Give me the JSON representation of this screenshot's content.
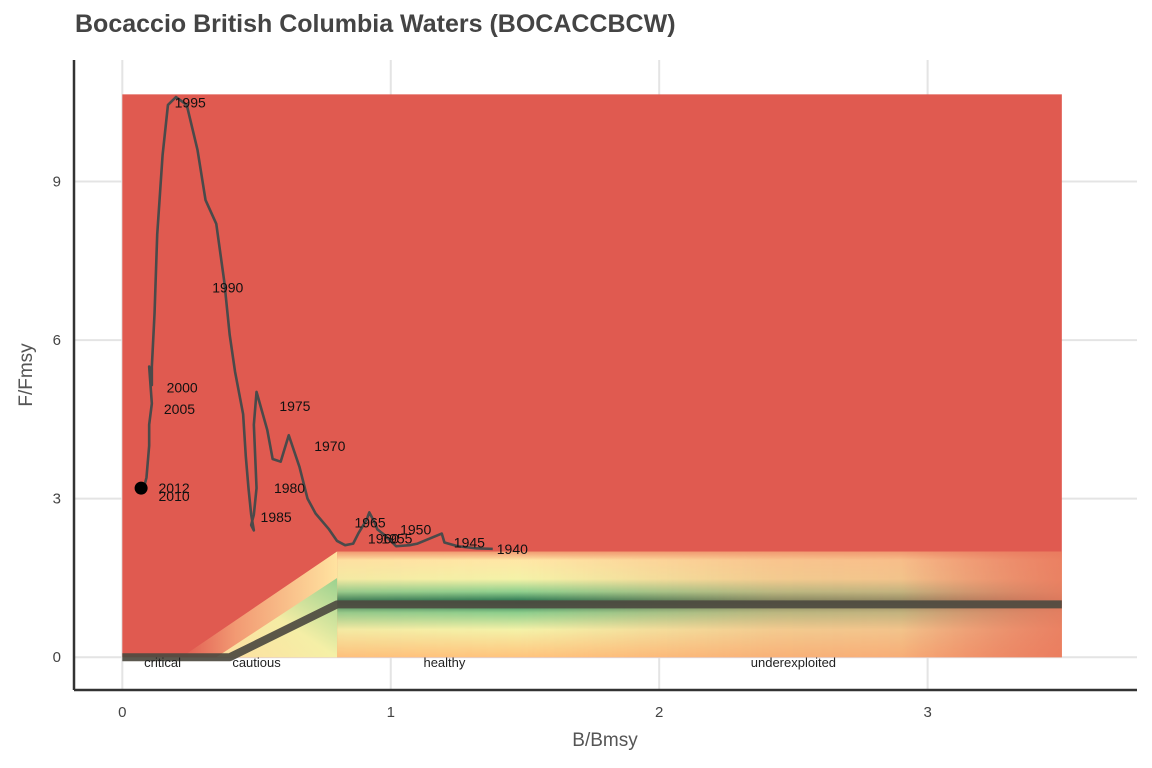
{
  "chart_data": {
    "type": "line",
    "title": "Bocaccio British Columbia Waters (BOCACCBCW)",
    "xlabel": "B/Bmsy",
    "ylabel": "F/Fmsy",
    "xlim": [
      -0.18,
      3.78
    ],
    "ylim": [
      -0.62,
      11.3
    ],
    "xticks": [
      0,
      1,
      2,
      3
    ],
    "yticks": [
      0,
      3,
      6,
      9
    ],
    "grid": true,
    "background_extent": {
      "x": [
        0,
        3.5
      ],
      "y": [
        0,
        10.65
      ]
    },
    "colors": {
      "overfished_zone": "#e05a50",
      "healthy_core": "#1f6b4a",
      "reference_line": "#4d4a40",
      "trajectory": "#4a4a4a",
      "last_point": "#000000"
    },
    "reference_line": {
      "x": [
        0,
        0.4,
        0.8,
        3.5
      ],
      "y": [
        0,
        0,
        1,
        1
      ]
    },
    "series": [
      {
        "x": [
          1.38,
          1.32,
          1.25,
          1.2,
          1.19,
          1.1,
          1.07,
          1.02,
          0.98,
          0.95,
          0.94,
          0.92,
          0.91,
          0.88,
          0.86,
          0.83,
          0.8,
          0.77,
          0.72,
          0.69,
          0.66,
          0.62,
          0.59,
          0.56,
          0.54,
          0.5,
          0.49,
          0.5,
          0.49,
          0.48,
          0.49,
          0.48,
          0.47,
          0.46,
          0.45,
          0.42,
          0.4,
          0.38,
          0.35,
          0.31,
          0.28,
          0.24,
          0.2,
          0.17,
          0.15,
          0.13,
          0.12,
          0.11,
          0.11,
          0.1,
          0.11,
          0.1,
          0.1,
          0.09,
          0.08,
          0.07
        ],
        "y": [
          2.05,
          2.06,
          2.1,
          2.17,
          2.34,
          2.15,
          2.12,
          2.1,
          2.3,
          2.42,
          2.55,
          2.74,
          2.6,
          2.35,
          2.15,
          2.12,
          2.2,
          2.42,
          2.72,
          3.0,
          3.6,
          4.2,
          3.7,
          3.75,
          4.3,
          5.02,
          4.4,
          3.2,
          2.7,
          2.5,
          2.4,
          2.7,
          3.2,
          3.8,
          4.6,
          5.4,
          6.1,
          7.1,
          8.2,
          8.65,
          9.6,
          10.45,
          10.6,
          10.45,
          9.5,
          8.0,
          6.5,
          5.5,
          5.15,
          5.5,
          4.8,
          4.4,
          4.0,
          3.4,
          3.2,
          3.2
        ]
      }
    ],
    "year_labels": [
      {
        "text": "1940",
        "x": 1.38,
        "y": 2.05
      },
      {
        "text": "1945",
        "x": 1.22,
        "y": 2.17
      },
      {
        "text": "1950",
        "x": 1.02,
        "y": 2.42
      },
      {
        "text": "1955",
        "x": 0.95,
        "y": 2.25
      },
      {
        "text": "1960",
        "x": 0.9,
        "y": 2.25
      },
      {
        "text": "1965",
        "x": 0.85,
        "y": 2.55
      },
      {
        "text": "1970",
        "x": 0.7,
        "y": 4.0
      },
      {
        "text": "1975",
        "x": 0.57,
        "y": 4.75
      },
      {
        "text": "1980",
        "x": 0.55,
        "y": 3.2
      },
      {
        "text": "1985",
        "x": 0.5,
        "y": 2.65
      },
      {
        "text": "1990",
        "x": 0.32,
        "y": 7.0
      },
      {
        "text": "1995",
        "x": 0.18,
        "y": 10.5
      },
      {
        "text": "2000",
        "x": 0.15,
        "y": 5.1
      },
      {
        "text": "2005",
        "x": 0.14,
        "y": 4.7
      },
      {
        "text": "2010",
        "x": 0.12,
        "y": 3.05
      },
      {
        "text": "2012",
        "x": 0.12,
        "y": 3.2
      }
    ],
    "last_point": {
      "x": 0.07,
      "y": 3.2
    },
    "zone_labels": [
      {
        "text": "critical",
        "x": 0.15
      },
      {
        "text": "cautious",
        "x": 0.5
      },
      {
        "text": "healthy",
        "x": 1.2
      },
      {
        "text": "underexploited",
        "x": 2.5
      }
    ]
  }
}
